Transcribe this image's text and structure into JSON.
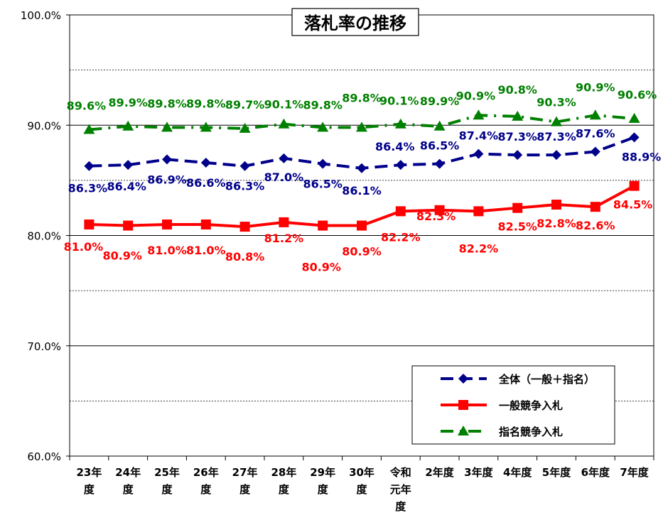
{
  "chart_data": {
    "type": "line",
    "title": "落札率の推移",
    "categories": [
      [
        "23年",
        "度"
      ],
      [
        "24年",
        "度"
      ],
      [
        "25年",
        "度"
      ],
      [
        "26年",
        "度"
      ],
      [
        "27年",
        "度"
      ],
      [
        "28年",
        "度"
      ],
      [
        "29年",
        "度"
      ],
      [
        "30年",
        "度"
      ],
      [
        "令和",
        "元年",
        "度"
      ],
      [
        "2年度"
      ],
      [
        "3年度"
      ],
      [
        "4年度"
      ],
      [
        "5年度"
      ],
      [
        "6年度"
      ],
      [
        "7年度"
      ]
    ],
    "y_ticks": [
      "100.0%",
      "90.0%",
      "80.0%",
      "70.0%",
      "60.0%"
    ],
    "ylim": [
      60,
      100
    ],
    "gridlines": [
      65,
      70,
      75,
      80,
      85,
      90,
      95
    ],
    "legend_position": "bottom-right",
    "series": [
      {
        "name": "全体（一般＋指名）",
        "color": "#00008b",
        "marker": "diamond",
        "line_style": "dashed",
        "values": [
          86.3,
          86.4,
          86.9,
          86.6,
          86.3,
          87.0,
          86.5,
          86.1,
          86.4,
          86.5,
          87.4,
          87.3,
          87.3,
          87.6,
          88.9
        ],
        "labels": [
          "86.3%",
          "86.4%",
          "86.9%",
          "86.6%",
          "86.3%",
          "87.0%",
          "86.5%",
          "86.1%",
          "86.4%",
          "86.5%",
          "87.4%",
          "87.3%",
          "87.3%",
          "87.6%",
          "88.9%"
        ]
      },
      {
        "name": "一般競争入札",
        "color": "#ff0000",
        "marker": "square",
        "line_style": "solid",
        "values": [
          81.0,
          80.9,
          81.0,
          81.0,
          80.8,
          81.2,
          80.9,
          80.9,
          82.2,
          82.3,
          82.2,
          82.5,
          82.8,
          82.6,
          84.5
        ],
        "labels": [
          "81.0%",
          "80.9%",
          "81.0%",
          "81.0%",
          "80.8%",
          "81.2%",
          "80.9%",
          "80.9%",
          "82.2%",
          "82.3%",
          "82.2%",
          "82.5%",
          "82.8%",
          "82.6%",
          "84.5%"
        ]
      },
      {
        "name": "指名競争入札",
        "color": "#008000",
        "marker": "triangle",
        "line_style": "dash-dot",
        "values": [
          89.6,
          89.9,
          89.8,
          89.8,
          89.7,
          90.1,
          89.8,
          89.8,
          90.1,
          89.9,
          90.9,
          90.8,
          90.3,
          90.9,
          90.6
        ],
        "labels": [
          "89.6%",
          "89.9%",
          "89.8%",
          "89.8%",
          "89.7%",
          "90.1%",
          "89.8%",
          "89.8%",
          "90.1%",
          "89.9%",
          "90.9%",
          "90.8%",
          "90.3%",
          "90.9%",
          "90.6%"
        ]
      }
    ]
  }
}
